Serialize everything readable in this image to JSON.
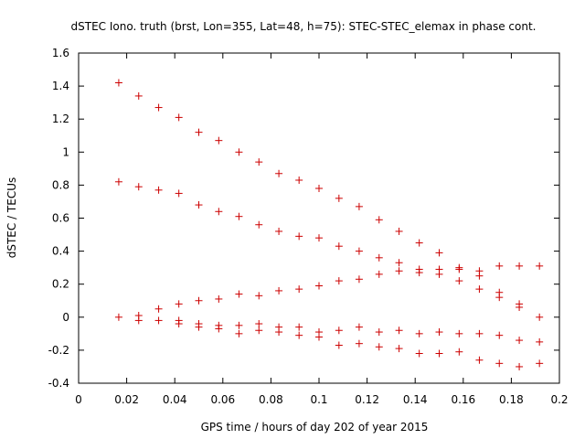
{
  "chart_data": {
    "type": "scatter",
    "title": "dSTEC Iono. truth (brst, Lon=355, Lat=48, h=75): STEC-STEC_elemax in phase cont.",
    "xlabel": "GPS time / hours of day 202 of year 2015",
    "ylabel": "dSTEC  / TECUs",
    "xlim": [
      0,
      0.2
    ],
    "ylim": [
      -0.4,
      1.6
    ],
    "xticks": [
      "0",
      "0.02",
      "0.04",
      "0.06",
      "0.08",
      "0.1",
      "0.12",
      "0.14",
      "0.16",
      "0.18",
      "0.2"
    ],
    "yticks": [
      "-0.4",
      "-0.2",
      "0",
      "0.2",
      "0.4",
      "0.6",
      "0.8",
      "1",
      "1.2",
      "1.4",
      "1.6"
    ],
    "marker": "+",
    "marker_color": "#cc0000",
    "grid": false,
    "legend": "none",
    "points": [
      [
        0.0167,
        1.42
      ],
      [
        0.025,
        1.34
      ],
      [
        0.0333,
        1.27
      ],
      [
        0.0417,
        1.21
      ],
      [
        0.05,
        1.12
      ],
      [
        0.0583,
        1.07
      ],
      [
        0.0667,
        1.0
      ],
      [
        0.075,
        0.94
      ],
      [
        0.0833,
        0.87
      ],
      [
        0.0917,
        0.83
      ],
      [
        0.1,
        0.78
      ],
      [
        0.1083,
        0.72
      ],
      [
        0.1167,
        0.67
      ],
      [
        0.125,
        0.59
      ],
      [
        0.1333,
        0.52
      ],
      [
        0.1417,
        0.45
      ],
      [
        0.15,
        0.39
      ],
      [
        0.1583,
        0.3
      ],
      [
        0.1667,
        0.28
      ],
      [
        0.175,
        0.31
      ],
      [
        0.1833,
        0.31
      ],
      [
        0.1917,
        0.31
      ],
      [
        0.0167,
        0.82
      ],
      [
        0.025,
        0.79
      ],
      [
        0.0333,
        0.77
      ],
      [
        0.0417,
        0.75
      ],
      [
        0.05,
        0.68
      ],
      [
        0.0583,
        0.64
      ],
      [
        0.0667,
        0.61
      ],
      [
        0.075,
        0.56
      ],
      [
        0.0833,
        0.52
      ],
      [
        0.0917,
        0.49
      ],
      [
        0.1,
        0.48
      ],
      [
        0.1083,
        0.43
      ],
      [
        0.1167,
        0.4
      ],
      [
        0.125,
        0.36
      ],
      [
        0.1333,
        0.33
      ],
      [
        0.1417,
        0.29
      ],
      [
        0.15,
        0.29
      ],
      [
        0.1583,
        0.29
      ],
      [
        0.1667,
        0.25
      ],
      [
        0.175,
        0.15
      ],
      [
        0.1833,
        0.08
      ],
      [
        0.0333,
        0.05
      ],
      [
        0.0417,
        0.08
      ],
      [
        0.05,
        0.1
      ],
      [
        0.0583,
        0.11
      ],
      [
        0.0667,
        0.14
      ],
      [
        0.075,
        0.13
      ],
      [
        0.0833,
        0.16
      ],
      [
        0.0917,
        0.17
      ],
      [
        0.1,
        0.19
      ],
      [
        0.1083,
        0.22
      ],
      [
        0.1167,
        0.23
      ],
      [
        0.125,
        0.26
      ],
      [
        0.1333,
        0.28
      ],
      [
        0.1417,
        0.27
      ],
      [
        0.15,
        0.26
      ],
      [
        0.1583,
        0.22
      ],
      [
        0.1667,
        0.17
      ],
      [
        0.175,
        0.12
      ],
      [
        0.1833,
        0.06
      ],
      [
        0.0167,
        0.0
      ],
      [
        0.025,
        0.01
      ],
      [
        0.025,
        -0.02
      ],
      [
        0.0333,
        -0.02
      ],
      [
        0.0417,
        -0.02
      ],
      [
        0.0417,
        -0.04
      ],
      [
        0.05,
        -0.04
      ],
      [
        0.05,
        -0.06
      ],
      [
        0.0583,
        -0.05
      ],
      [
        0.0583,
        -0.07
      ],
      [
        0.0667,
        -0.05
      ],
      [
        0.0667,
        -0.1
      ],
      [
        0.075,
        -0.04
      ],
      [
        0.075,
        -0.08
      ],
      [
        0.0833,
        -0.06
      ],
      [
        0.0833,
        -0.09
      ],
      [
        0.0917,
        -0.06
      ],
      [
        0.0917,
        -0.11
      ],
      [
        0.1,
        -0.09
      ],
      [
        0.1,
        -0.12
      ],
      [
        0.1083,
        -0.08
      ],
      [
        0.1083,
        -0.17
      ],
      [
        0.1167,
        -0.06
      ],
      [
        0.1167,
        -0.16
      ],
      [
        0.125,
        -0.09
      ],
      [
        0.125,
        -0.18
      ],
      [
        0.1333,
        -0.08
      ],
      [
        0.1333,
        -0.19
      ],
      [
        0.1417,
        -0.1
      ],
      [
        0.1417,
        -0.22
      ],
      [
        0.15,
        -0.09
      ],
      [
        0.15,
        -0.22
      ],
      [
        0.1583,
        -0.1
      ],
      [
        0.1583,
        -0.21
      ],
      [
        0.1667,
        -0.1
      ],
      [
        0.1667,
        -0.26
      ],
      [
        0.175,
        -0.11
      ],
      [
        0.175,
        -0.28
      ],
      [
        0.1833,
        -0.14
      ],
      [
        0.1833,
        -0.3
      ],
      [
        0.1917,
        0.0
      ],
      [
        0.1917,
        -0.15
      ],
      [
        0.1917,
        -0.28
      ]
    ]
  }
}
